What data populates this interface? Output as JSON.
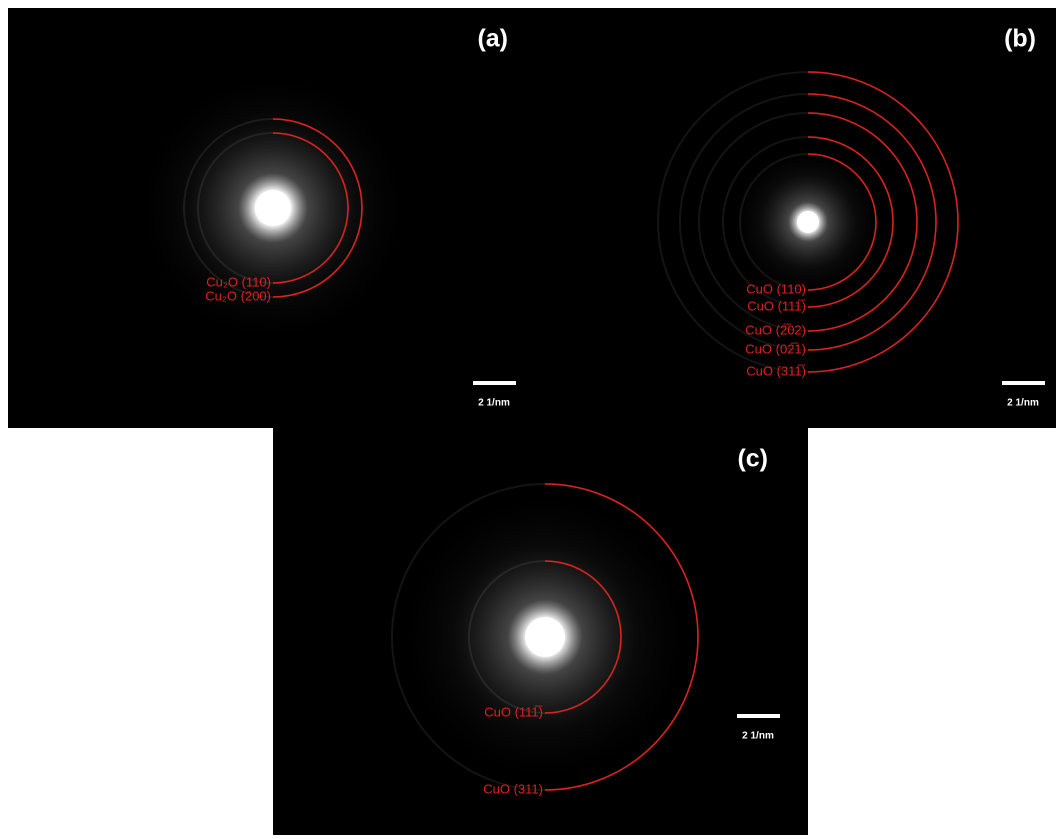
{
  "panels": [
    {
      "label": "(a)",
      "rings": [
        "Cu₂O (110)",
        "Cu₂O (200)"
      ],
      "scale_bar": "2 1/nm"
    },
    {
      "label": "(b)",
      "rings": [
        "CuO (110)",
        "CuO (111̅)",
        "CuO (2̅02)",
        "CuO (02̅1)",
        "CuO (311̅)"
      ],
      "scale_bar": "2 1/nm"
    },
    {
      "label": "(c)",
      "rings": [
        "CuO (111̅)",
        "CuO (311)"
      ],
      "scale_bar": "2 1/nm"
    }
  ]
}
